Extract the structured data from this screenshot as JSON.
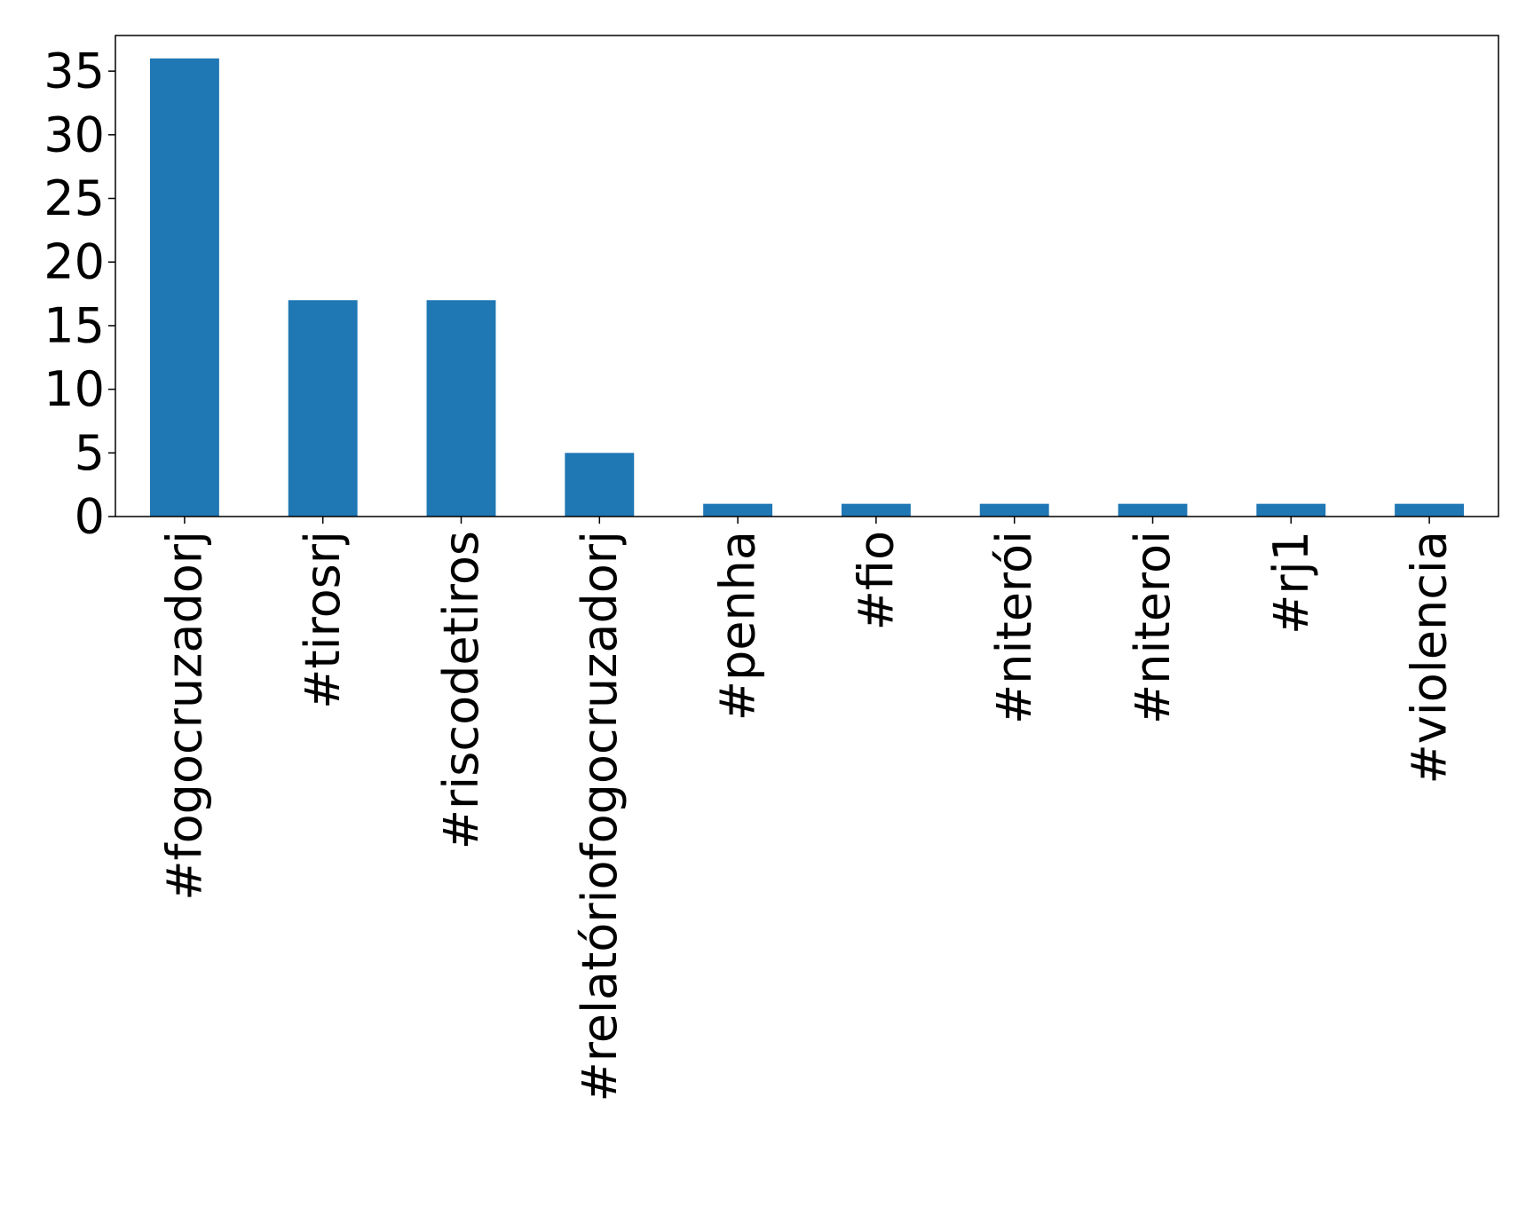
{
  "chart_data": {
    "type": "bar",
    "title": "",
    "xlabel": "",
    "ylabel": "",
    "categories": [
      "#fogocruzadorj",
      "#tirosrj",
      "#riscodetiros",
      "#relatóriofogocruzadorj",
      "#penha",
      "#fio",
      "#niterói",
      "#niteroi",
      "#rj1",
      "#violencia"
    ],
    "values": [
      36,
      17,
      17,
      5,
      1,
      1,
      1,
      1,
      1,
      1
    ],
    "ylim": [
      0,
      37.8
    ],
    "yticks": [
      0,
      5,
      10,
      15,
      20,
      25,
      30,
      35
    ],
    "grid": false,
    "legend": "none",
    "bar_color": "#1f77b4"
  }
}
